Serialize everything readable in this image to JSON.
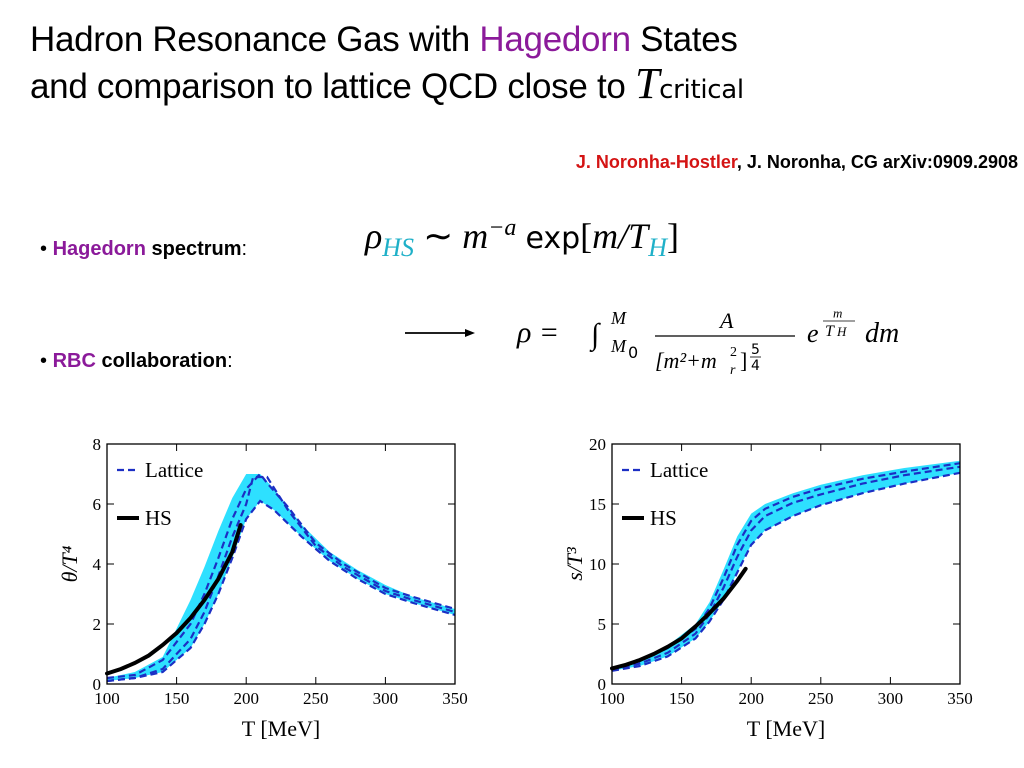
{
  "title": {
    "line1_pre": "Hadron Resonance Gas with",
    "line1_highlight": "Hagedorn",
    "line1_post": "States",
    "line2": "and comparison to lattice QCD close to",
    "math_T": "T",
    "math_sub": "critical"
  },
  "authors": {
    "first": "J. Noronha-Hostler",
    "rest": ", J. Noronha, CG  arXiv:0909.2908"
  },
  "bullets": [
    {
      "marker": "•",
      "highlight": "Hagedorn",
      "bold": "spectrum",
      "suffix": ":"
    },
    {
      "marker": "•",
      "highlight": "RBC",
      "bold": "collaboration",
      "suffix": ":"
    }
  ],
  "equation1": {
    "rho": "ρ",
    "rho_sub": "HS",
    "sim": "∼",
    "m": "m",
    "exponent": "−a",
    "exp": "exp",
    "bracket_open": "[",
    "m_over_T": "m/T",
    "T_sub": "H",
    "bracket_close": "]"
  },
  "equation2": {
    "lhs": "ρ =",
    "integral": "∫",
    "upper_limit": "M",
    "lower_limit": "M",
    "lower_limit_sub": "0",
    "numerator": "A",
    "denominator": "[m²+m",
    "denominator_sub": "r",
    "denominator_sup": "2",
    "denominator_close": "]",
    "den_exp_num": "5",
    "den_exp_den": "4",
    "e": "e",
    "e_exp_num": "m",
    "e_exp_den": "T",
    "e_exp_den_sub": "H",
    "dm": "dm"
  },
  "colors": {
    "hagedorn_purple": "#8b1a9a",
    "author_red": "#d41414",
    "lattice_blue": "#1c2fc4",
    "band_cyan": "#2ee0ff",
    "hs_black": "#000000"
  },
  "chart_data": [
    {
      "type": "line",
      "title": "",
      "xlabel": "T [MeV]",
      "ylabel": "θ/T⁴",
      "xlim": [
        100,
        350
      ],
      "ylim": [
        0,
        8
      ],
      "xticks": [
        100,
        150,
        200,
        250,
        300,
        350
      ],
      "yticks": [
        0,
        2,
        4,
        6,
        8
      ],
      "grid": false,
      "legend_position": "top-left",
      "legend": [
        {
          "name": "Lattice",
          "style": "dashed",
          "color": "#1c2fc4"
        },
        {
          "name": "HS",
          "style": "solid",
          "color": "#000000"
        }
      ],
      "band": {
        "x": [
          100,
          120,
          140,
          160,
          170,
          180,
          190,
          200,
          210,
          220,
          240,
          260,
          280,
          300,
          320,
          350
        ],
        "lower": [
          0.1,
          0.2,
          0.4,
          1.2,
          2.0,
          3.0,
          4.2,
          5.5,
          6.1,
          5.8,
          4.9,
          4.1,
          3.5,
          3.0,
          2.7,
          2.3
        ],
        "upper": [
          0.2,
          0.4,
          0.9,
          2.8,
          3.9,
          5.1,
          6.2,
          7.0,
          7.0,
          6.5,
          5.3,
          4.4,
          3.8,
          3.3,
          2.9,
          2.5
        ]
      },
      "series": [
        {
          "name": "Lattice",
          "x": [
            100,
            120,
            140,
            160,
            170,
            180,
            190,
            200,
            205,
            215,
            230,
            250,
            270,
            300,
            320,
            350
          ],
          "values": [
            0.1,
            0.2,
            0.5,
            1.5,
            2.4,
            3.6,
            4.9,
            6.0,
            6.9,
            6.9,
            5.8,
            4.6,
            3.9,
            3.1,
            2.8,
            2.4
          ]
        },
        {
          "name": "Lattice",
          "x": [
            100,
            120,
            140,
            160,
            170,
            180,
            190,
            200,
            210,
            215,
            230,
            250,
            270,
            300,
            320,
            350
          ],
          "values": [
            0.2,
            0.3,
            0.8,
            2.0,
            3.0,
            4.2,
            5.5,
            6.5,
            7.0,
            6.7,
            5.9,
            4.7,
            4.0,
            3.2,
            2.9,
            2.5
          ]
        },
        {
          "name": "Lattice",
          "x": [
            100,
            120,
            140,
            160,
            170,
            180,
            190,
            200,
            210,
            220,
            240,
            260,
            280,
            300,
            320,
            350
          ],
          "values": [
            0.1,
            0.2,
            0.4,
            1.2,
            2.0,
            3.0,
            4.2,
            5.5,
            6.1,
            5.8,
            4.9,
            4.1,
            3.5,
            3.0,
            2.7,
            2.3
          ]
        },
        {
          "name": "HS",
          "x": [
            100,
            110,
            120,
            130,
            140,
            150,
            160,
            170,
            180,
            190,
            196
          ],
          "values": [
            0.35,
            0.5,
            0.7,
            0.95,
            1.3,
            1.7,
            2.2,
            2.8,
            3.5,
            4.4,
            5.3
          ]
        }
      ]
    },
    {
      "type": "line",
      "title": "",
      "xlabel": "T [MeV]",
      "ylabel": "s/T³",
      "xlim": [
        100,
        350
      ],
      "ylim": [
        0,
        20
      ],
      "xticks": [
        100,
        150,
        200,
        250,
        300,
        350
      ],
      "yticks": [
        0,
        5,
        10,
        15,
        20
      ],
      "grid": false,
      "legend_position": "top-left",
      "legend": [
        {
          "name": "Lattice",
          "style": "dashed",
          "color": "#1c2fc4"
        },
        {
          "name": "HS",
          "style": "solid",
          "color": "#000000"
        }
      ],
      "band": {
        "x": [
          100,
          120,
          140,
          160,
          170,
          180,
          190,
          200,
          210,
          230,
          250,
          280,
          310,
          350
        ],
        "lower": [
          1.1,
          1.5,
          2.3,
          3.8,
          5.2,
          7.0,
          9.3,
          11.6,
          12.8,
          14.0,
          14.9,
          15.9,
          16.7,
          17.6
        ],
        "upper": [
          1.4,
          2.1,
          3.2,
          5.0,
          6.8,
          9.5,
          12.3,
          14.2,
          15.0,
          15.9,
          16.6,
          17.4,
          18.0,
          18.6
        ]
      },
      "series": [
        {
          "name": "Lattice",
          "x": [
            100,
            120,
            140,
            160,
            170,
            180,
            190,
            200,
            210,
            230,
            250,
            280,
            310,
            350
          ],
          "values": [
            1.3,
            1.9,
            3.0,
            4.6,
            6.3,
            8.8,
            11.6,
            13.6,
            14.6,
            15.6,
            16.3,
            17.1,
            17.7,
            18.4
          ]
        },
        {
          "name": "Lattice",
          "x": [
            100,
            120,
            140,
            160,
            170,
            180,
            190,
            200,
            210,
            230,
            250,
            280,
            310,
            350
          ],
          "values": [
            1.2,
            1.7,
            2.6,
            4.2,
            5.8,
            8.0,
            10.6,
            12.8,
            14.0,
            15.1,
            15.8,
            16.7,
            17.4,
            18.1
          ]
        },
        {
          "name": "Lattice",
          "x": [
            100,
            120,
            140,
            160,
            170,
            180,
            190,
            200,
            210,
            230,
            250,
            280,
            310,
            350
          ],
          "values": [
            1.1,
            1.5,
            2.3,
            3.8,
            5.2,
            7.0,
            9.3,
            11.6,
            12.8,
            14.0,
            14.9,
            15.9,
            16.7,
            17.6
          ]
        },
        {
          "name": "HS",
          "x": [
            100,
            110,
            120,
            130,
            140,
            150,
            160,
            170,
            180,
            190,
            196
          ],
          "values": [
            1.3,
            1.6,
            2.0,
            2.5,
            3.1,
            3.8,
            4.8,
            5.9,
            7.1,
            8.6,
            9.6
          ]
        }
      ]
    }
  ]
}
